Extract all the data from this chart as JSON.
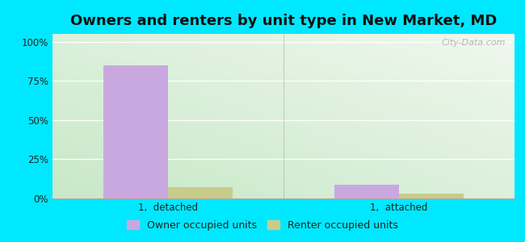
{
  "title": "Owners and renters by unit type in New Market, MD",
  "categories": [
    "1,  detached",
    "1,  attached"
  ],
  "owner_values": [
    85,
    9
  ],
  "renter_values": [
    7,
    3
  ],
  "owner_color": "#c9a8e0",
  "renter_color": "#c8cc8a",
  "yticks": [
    0,
    25,
    50,
    75,
    100
  ],
  "ytick_labels": [
    "0%",
    "25%",
    "50%",
    "75%",
    "100%"
  ],
  "ylim": [
    0,
    105
  ],
  "bar_width": 0.28,
  "background_outer": "#00e8ff",
  "watermark": "City-Data.com",
  "legend_owner": "Owner occupied units",
  "legend_renter": "Renter occupied units",
  "title_fontsize": 13,
  "tick_fontsize": 8.5,
  "legend_fontsize": 9
}
